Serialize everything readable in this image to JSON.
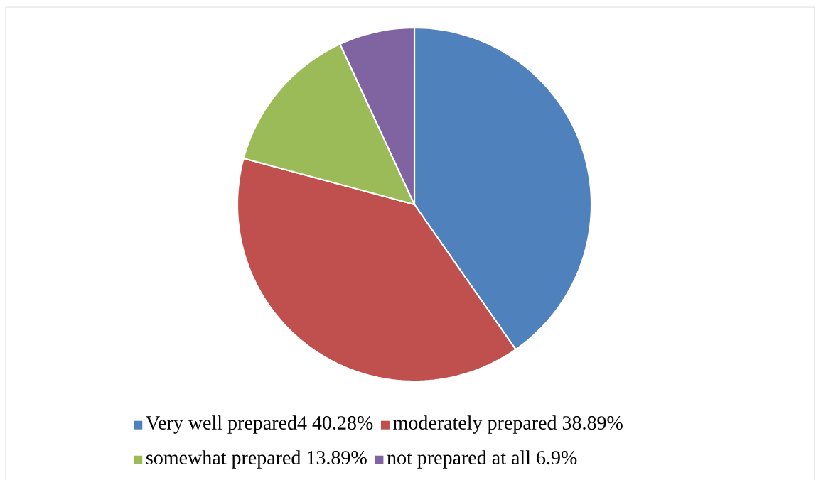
{
  "chart_data": {
    "type": "pie",
    "categories": [
      "Very well prepared4 40.28%",
      "moderately prepared 38.89%",
      "somewhat prepared 13.89%",
      "not prepared at all 6.9%"
    ],
    "values": [
      40.28,
      38.89,
      13.89,
      6.9
    ],
    "colors": [
      "#4f81bd",
      "#c0504d",
      "#9bbb59",
      "#8064a2"
    ],
    "legend": "bottom"
  }
}
